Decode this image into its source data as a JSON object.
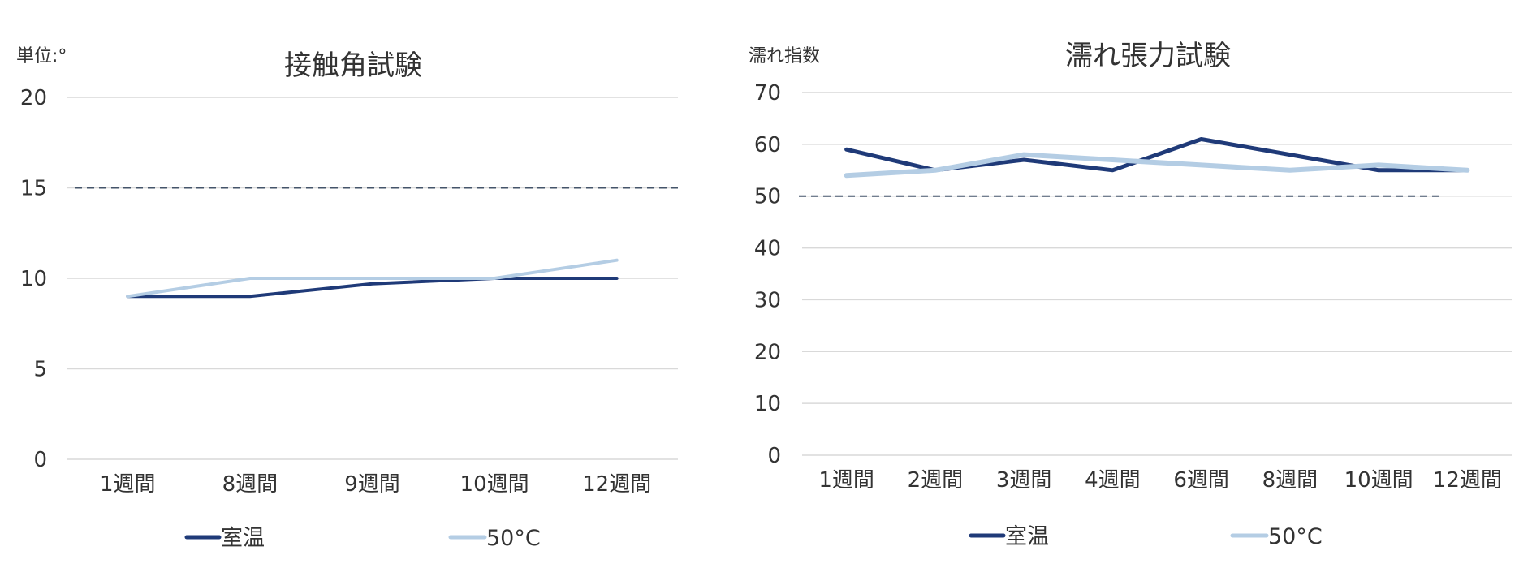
{
  "colors": {
    "room_temp": "#1f3a78",
    "temp_50c": "#b4cde4",
    "reference": "#44546a",
    "grid": "#d9d9d9"
  },
  "chart_data": [
    {
      "type": "line",
      "title": "接触角試験",
      "unit_label": "単位:°",
      "categories": [
        "1週間",
        "8週間",
        "9週間",
        "10週間",
        "12週間"
      ],
      "series": [
        {
          "name": "室温",
          "values": [
            9,
            9,
            9.7,
            10,
            10
          ]
        },
        {
          "name": "50°C",
          "values": [
            9,
            10,
            10,
            10,
            11
          ]
        }
      ],
      "reference_line": 15,
      "ylim": [
        0,
        20
      ],
      "yticks": [
        0,
        5,
        10,
        15,
        20
      ],
      "grid": true,
      "legend": "bottom"
    },
    {
      "type": "line",
      "title": "濡れ張力試験",
      "unit_label": "濡れ指数",
      "categories": [
        "1週間",
        "2週間",
        "3週間",
        "4週間",
        "6週間",
        "8週間",
        "10週間",
        "12週間"
      ],
      "series": [
        {
          "name": "室温",
          "values": [
            59,
            55,
            57,
            55,
            61,
            58,
            55,
            55
          ]
        },
        {
          "name": "50°C",
          "values": [
            54,
            55,
            58,
            57,
            56,
            55,
            56,
            55
          ]
        }
      ],
      "reference_line": 50,
      "ylim": [
        0,
        70
      ],
      "yticks": [
        0,
        10,
        20,
        30,
        40,
        50,
        60,
        70
      ],
      "grid": true,
      "legend": "bottom"
    }
  ]
}
